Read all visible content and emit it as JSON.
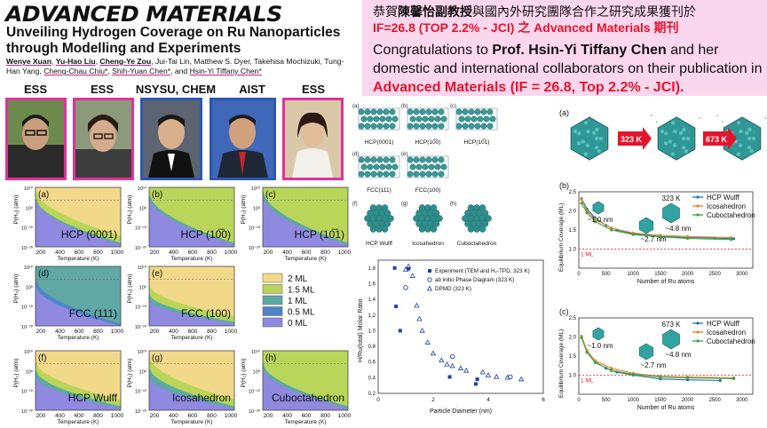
{
  "journal": "ADVANCED MATERIALS",
  "paper_title": "Unveiling Hydrogen Coverage on Ru Nanoparticles through Modelling and Experiments",
  "authors": {
    "a1": "Wenye Xuan",
    "a2": "Yu-Hao Liu",
    "a3": "Cheng-Ye Zou",
    "a4": "Jui-Tai Lin, Matthew S. Dyer, Takehisa Mochizuki,",
    "a5": "Tung-Han Yang,",
    "a6": "Cheng-Chau Chiu*",
    "a7": "Shih-Yuan Chen*",
    "a8": "and",
    "a9": "Hsin-Yi Tiffany Chen*"
  },
  "affiliations": [
    "ESS",
    "ESS",
    "NSYSU, CHEM",
    "AIST",
    "ESS"
  ],
  "banner": {
    "zh_pre": "恭賀",
    "zh_name": "陳馨怡副教授",
    "zh_mid": "與國內外研究團隊合作之研究成果獲刊於",
    "zh_red": "IF=26.8 (TOP 2.2% - JCI)  之 Advanced Materials 期刊",
    "en_pre": "Congratulations to",
    "en_name": "Prof. Hsin-Yi Tiffany Chen",
    "en_mid": "and her domestic and international collaborators on their publication in",
    "en_red": "Advanced Materials (IF = 26.8, Top 2.2% - JCI)."
  },
  "phase_panels": [
    {
      "letter": "(a)",
      "name": "HCP (0001)"
    },
    {
      "letter": "(b)",
      "name": "HCP (10̅0)"
    },
    {
      "letter": "(c)",
      "name": "HCP (10̅1)"
    },
    {
      "letter": "(d)",
      "name": "FCC (111)"
    },
    {
      "letter": "(e)",
      "name": "FCC (100)"
    },
    {
      "letter": "(f)",
      "name": "HCP Wulff"
    },
    {
      "letter": "(g)",
      "name": "Icosahedron"
    },
    {
      "letter": "(h)",
      "name": "Cuboctahedron"
    }
  ],
  "phase_axes": {
    "xlabel": "Temperature (K)",
    "ylabel": "P(H₂) (atm)",
    "xticks": [
      "200",
      "400",
      "600",
      "800",
      "1000"
    ],
    "yticks": [
      "10¹⁰",
      "10⁰",
      "10⁻¹⁰",
      "10⁻²⁰"
    ]
  },
  "phase_legend": [
    {
      "label": "2 ML",
      "color": "#f2d98a"
    },
    {
      "label": "1.5 ML",
      "color": "#b9d65a"
    },
    {
      "label": "1 ML",
      "color": "#5fa8a4"
    },
    {
      "label": "0.5 ML",
      "color": "#4d86c8"
    },
    {
      "label": "0 ML",
      "color": "#8f89e0"
    }
  ],
  "structures": [
    {
      "letter": "(a)",
      "name": "HCP(0001)"
    },
    {
      "letter": "(b)",
      "name": "HCP(10̅0)"
    },
    {
      "letter": "(c)",
      "name": "HCP(10̅1)"
    },
    {
      "letter": "(d)",
      "name": "FCC(111)"
    },
    {
      "letter": "(e)",
      "name": "FCC(100)"
    },
    {
      "letter": "(f)",
      "name": "HCP Wulff"
    },
    {
      "letter": "(g)",
      "name": "Icosahedron"
    },
    {
      "letter": "(h)",
      "name": "Cuboctahedron"
    }
  ],
  "chart_data": [
    {
      "type": "scatter",
      "title": "",
      "xlabel": "Particle Diameter (nm)",
      "ylabel": "H/Ru(total) Molar Ratio",
      "xlim": [
        0,
        6
      ],
      "ylim": [
        0.2,
        1.9
      ],
      "xticks": [
        "0",
        "2",
        "4",
        "6"
      ],
      "yticks": [
        "0.2",
        "0.4",
        "0.6",
        "0.8",
        "1.0",
        "1.2",
        "1.4",
        "1.6",
        "1.8"
      ],
      "series": [
        {
          "name": "Experiment (TEM and H₂-TPD, 323 K)",
          "marker": "square",
          "points": [
            [
              0.6,
              1.8
            ],
            [
              0.65,
              1.31
            ],
            [
              0.8,
              1.0
            ],
            [
              1.1,
              1.79
            ],
            [
              2.6,
              0.41
            ],
            [
              3.55,
              0.32
            ],
            [
              3.6,
              0.38
            ]
          ]
        },
        {
          "name": "ab initio Phase Diagram  (323 K)",
          "marker": "circle",
          "points": [
            [
              1.0,
              1.55
            ],
            [
              2.7,
              0.67
            ],
            [
              4.8,
              0.41
            ]
          ]
        },
        {
          "name": "DPMD (323 K)",
          "marker": "triangle",
          "points": [
            [
              1.0,
              1.78
            ],
            [
              1.1,
              1.82
            ],
            [
              1.25,
              1.7
            ],
            [
              1.4,
              1.32
            ],
            [
              1.5,
              1.15
            ],
            [
              1.6,
              1.0
            ],
            [
              1.8,
              0.85
            ],
            [
              2.0,
              0.71
            ],
            [
              2.3,
              0.62
            ],
            [
              2.5,
              0.57
            ],
            [
              2.7,
              0.55
            ],
            [
              3.0,
              0.52
            ],
            [
              3.2,
              0.49
            ],
            [
              3.8,
              0.47
            ],
            [
              4.0,
              0.43
            ],
            [
              4.3,
              0.41
            ],
            [
              4.7,
              0.4
            ],
            [
              5.2,
              0.38
            ]
          ]
        }
      ]
    },
    {
      "type": "line",
      "letter": "(b)",
      "label": "323 K",
      "xlabel": "Number of Ru atoms",
      "ylabel": "Equilibrium Coverage (ML)",
      "xlim": [
        0,
        3200
      ],
      "ylim": [
        0.5,
        2.5
      ],
      "xticks": [
        "0",
        "500",
        "1000",
        "1500",
        "2000",
        "2500",
        "3000"
      ],
      "yticks": [
        "1.0",
        "1.5",
        "2.0",
        "2.5"
      ],
      "ref_label": "1 ML",
      "sizes": [
        "~1.0 nm",
        "~2.7 nm",
        "~4.8 nm"
      ],
      "series": [
        {
          "name": "HCP Wulff",
          "color": "#1f6fb4",
          "points": [
            [
              50,
              2.32
            ],
            [
              150,
              2.05
            ],
            [
              300,
              1.82
            ],
            [
              500,
              1.62
            ],
            [
              700,
              1.5
            ],
            [
              1000,
              1.4
            ],
            [
              1500,
              1.33
            ],
            [
              2000,
              1.3
            ],
            [
              2500,
              1.29
            ],
            [
              2850,
              1.27
            ]
          ]
        },
        {
          "name": "Icosahedron",
          "color": "#e8822a",
          "points": [
            [
              50,
              2.3
            ],
            [
              150,
              2.0
            ],
            [
              300,
              1.78
            ],
            [
              600,
              1.55
            ],
            [
              1000,
              1.42
            ],
            [
              1500,
              1.36
            ],
            [
              2000,
              1.33
            ],
            [
              2800,
              1.3
            ]
          ]
        },
        {
          "name": "Cuboctahedron",
          "color": "#3aa537",
          "points": [
            [
              50,
              2.2
            ],
            [
              150,
              1.95
            ],
            [
              300,
              1.72
            ],
            [
              600,
              1.5
            ],
            [
              1000,
              1.38
            ],
            [
              1500,
              1.32
            ],
            [
              2000,
              1.28
            ],
            [
              2800,
              1.25
            ]
          ]
        }
      ]
    },
    {
      "type": "line",
      "letter": "(c)",
      "label": "673 K",
      "xlabel": "Number of Ru atoms",
      "ylabel": "Equilibrium Coverage (ML)",
      "xlim": [
        0,
        3200
      ],
      "ylim": [
        0.5,
        2.5
      ],
      "xticks": [
        "0",
        "500",
        "1000",
        "1500",
        "2000",
        "2500",
        "3000"
      ],
      "yticks": [
        "1.0",
        "1.5",
        "2.0",
        "2.5"
      ],
      "ref_label": "1 ML",
      "sizes": [
        "~1.0 nm",
        "~2.7 nm",
        "~4.8 nm"
      ],
      "series": [
        {
          "name": "HCP Wulff",
          "color": "#1f6fb4",
          "points": [
            [
              50,
              2.0
            ],
            [
              150,
              1.6
            ],
            [
              300,
              1.35
            ],
            [
              500,
              1.18
            ],
            [
              700,
              1.08
            ],
            [
              1000,
              1.0
            ],
            [
              1500,
              0.9
            ],
            [
              2000,
              0.88
            ],
            [
              2600,
              0.86
            ]
          ]
        },
        {
          "name": "Icosahedron",
          "color": "#e8822a",
          "points": [
            [
              50,
              2.02
            ],
            [
              150,
              1.65
            ],
            [
              300,
              1.38
            ],
            [
              600,
              1.18
            ],
            [
              1000,
              1.05
            ],
            [
              1500,
              0.97
            ],
            [
              2000,
              0.95
            ],
            [
              2850,
              0.93
            ]
          ]
        },
        {
          "name": "Cuboctahedron",
          "color": "#3aa537",
          "points": [
            [
              50,
              1.98
            ],
            [
              150,
              1.6
            ],
            [
              300,
              1.33
            ],
            [
              600,
              1.12
            ],
            [
              1000,
              1.02
            ],
            [
              1500,
              0.95
            ],
            [
              2000,
              0.93
            ],
            [
              2850,
              0.91
            ]
          ]
        }
      ]
    }
  ],
  "sim_panel": {
    "letter": "(a)",
    "t1": "323 K",
    "t2": "673 K"
  }
}
